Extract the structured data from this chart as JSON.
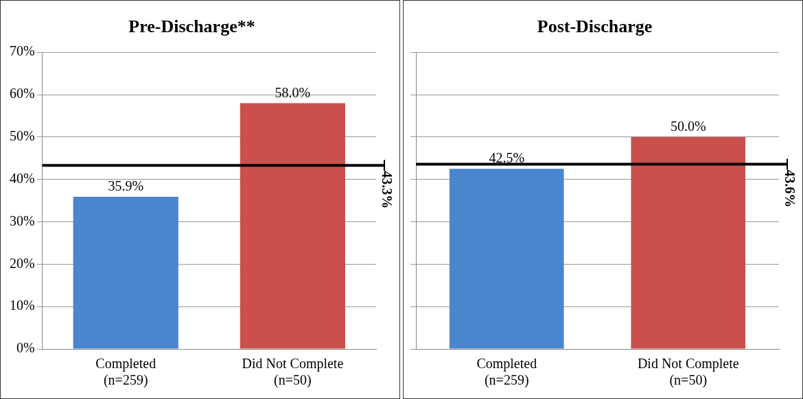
{
  "chart_data": [
    {
      "type": "bar",
      "title": "Pre-Discharge**",
      "categories": [
        "Completed\n(n=259)",
        "Did Not Complete\n(n=50)"
      ],
      "values": [
        35.9,
        58.0
      ],
      "colors": [
        "#4a86d0",
        "#c9504d"
      ],
      "value_labels": [
        "35.9%",
        "58.0%"
      ],
      "ylim": [
        0,
        70
      ],
      "yticks": [
        {
          "value": 0,
          "label": "0%"
        },
        {
          "value": 10,
          "label": "10%"
        },
        {
          "value": 20,
          "label": "20%"
        },
        {
          "value": 30,
          "label": "30%"
        },
        {
          "value": 40,
          "label": "40%"
        },
        {
          "value": 50,
          "label": "50%"
        },
        {
          "value": 60,
          "label": "60%"
        },
        {
          "value": 70,
          "label": "70%"
        }
      ],
      "grid": "y",
      "ref_lines": [
        {
          "axis": "y",
          "value": 43.3,
          "label": "43.3%",
          "color": "#000000"
        }
      ]
    },
    {
      "type": "bar",
      "title": "Post-Discharge",
      "categories": [
        "Completed\n(n=259)",
        "Did Not Complete\n(n=50)"
      ],
      "values": [
        42.5,
        50.0
      ],
      "colors": [
        "#4a86d0",
        "#c9504d"
      ],
      "value_labels": [
        "42.5%",
        "50.0%"
      ],
      "ylim": [
        0,
        70
      ],
      "yticks": [
        0,
        10,
        20,
        30,
        40,
        50,
        60,
        70
      ],
      "grid": "y",
      "tick_labels": "x",
      "ref_lines": [
        {
          "axis": "y",
          "value": 43.6,
          "label": "43.6%",
          "color": "#000000"
        }
      ]
    }
  ]
}
